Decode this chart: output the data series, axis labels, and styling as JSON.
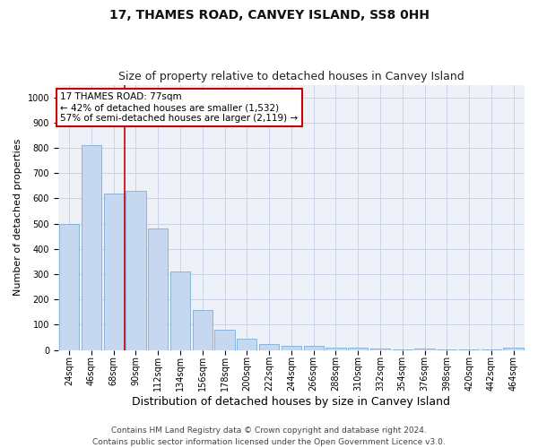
{
  "title": "17, THAMES ROAD, CANVEY ISLAND, SS8 0HH",
  "subtitle": "Size of property relative to detached houses in Canvey Island",
  "xlabel": "Distribution of detached houses by size in Canvey Island",
  "ylabel": "Number of detached properties",
  "categories": [
    "24sqm",
    "46sqm",
    "68sqm",
    "90sqm",
    "112sqm",
    "134sqm",
    "156sqm",
    "178sqm",
    "200sqm",
    "222sqm",
    "244sqm",
    "266sqm",
    "288sqm",
    "310sqm",
    "332sqm",
    "354sqm",
    "376sqm",
    "398sqm",
    "420sqm",
    "442sqm",
    "464sqm"
  ],
  "values": [
    500,
    810,
    620,
    630,
    480,
    310,
    160,
    80,
    45,
    22,
    18,
    18,
    10,
    8,
    5,
    1,
    5,
    1,
    1,
    1,
    8
  ],
  "bar_color": "#c5d8f0",
  "bar_edge_color": "#7aaed6",
  "vline_x_index": 2.5,
  "vline_color": "#cc0000",
  "annotation_text": "17 THAMES ROAD: 77sqm\n← 42% of detached houses are smaller (1,532)\n57% of semi-detached houses are larger (2,119) →",
  "annotation_box_color": "#ffffff",
  "annotation_box_edge_color": "#cc0000",
  "ylim": [
    0,
    1050
  ],
  "yticks": [
    0,
    100,
    200,
    300,
    400,
    500,
    600,
    700,
    800,
    900,
    1000
  ],
  "footer1": "Contains HM Land Registry data © Crown copyright and database right 2024.",
  "footer2": "Contains public sector information licensed under the Open Government Licence v3.0.",
  "bg_color": "#ffffff",
  "plot_bg_color": "#eef2f8",
  "grid_color": "#c8d4e8",
  "title_fontsize": 10,
  "subtitle_fontsize": 9,
  "xlabel_fontsize": 9,
  "ylabel_fontsize": 8,
  "tick_fontsize": 7,
  "footer_fontsize": 6.5,
  "annotation_fontsize": 7.5
}
